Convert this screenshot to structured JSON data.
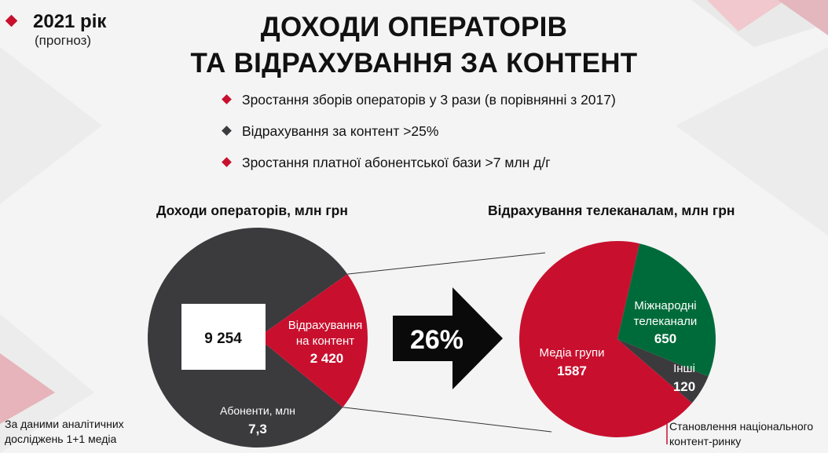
{
  "header": {
    "year": "2021 рік",
    "forecast": "(прогноз)",
    "title_line1": "ДОХОДИ ОПЕРАТОРІВ",
    "title_line2": "ТА ВІДРАХУВАННЯ ЗА КОНТЕНТ"
  },
  "bullets": [
    {
      "text": "Зростання зборів операторів у 3 рази (в порівнянні з 2017)",
      "color": "#c8102e"
    },
    {
      "text": "Відрахування за контент >25%",
      "color": "#3b3a3d"
    },
    {
      "text": "Зростання платної абонентської бази >7 млн д/г",
      "color": "#c8102e"
    }
  ],
  "arrow": {
    "label": "26%"
  },
  "footnote": {
    "line1": "За даними аналітичних",
    "line2": "досліджень 1+1 медіа"
  },
  "note_right": {
    "line1": "Становлення національного",
    "line2": "контент-ринку"
  },
  "colors": {
    "red": "#c8102e",
    "dark": "#3b3a3d",
    "green": "#006b3a"
  },
  "chart_data": [
    {
      "type": "pie",
      "title": "Доходи операторів, млн грн",
      "slices": [
        {
          "label": "",
          "value": 9254,
          "value_label": "9 254",
          "color": "#3b3a3d"
        },
        {
          "label": "Відрахування на контент",
          "value": 2420,
          "value_label": "2 420",
          "color": "#c8102e"
        }
      ],
      "annotation": {
        "label": "Абоненти, млн",
        "value_label": "7,3"
      }
    },
    {
      "type": "pie",
      "title": "Відрахування телеканалам, млн грн",
      "slices": [
        {
          "label": "Медіа групи",
          "value": 1587,
          "value_label": "1587",
          "color": "#c8102e"
        },
        {
          "label": "Міжнародні телеканали",
          "value": 650,
          "value_label": "650",
          "color": "#006b3a"
        },
        {
          "label": "Інші",
          "value": 120,
          "value_label": "120",
          "color": "#3b3a3d"
        }
      ]
    }
  ]
}
